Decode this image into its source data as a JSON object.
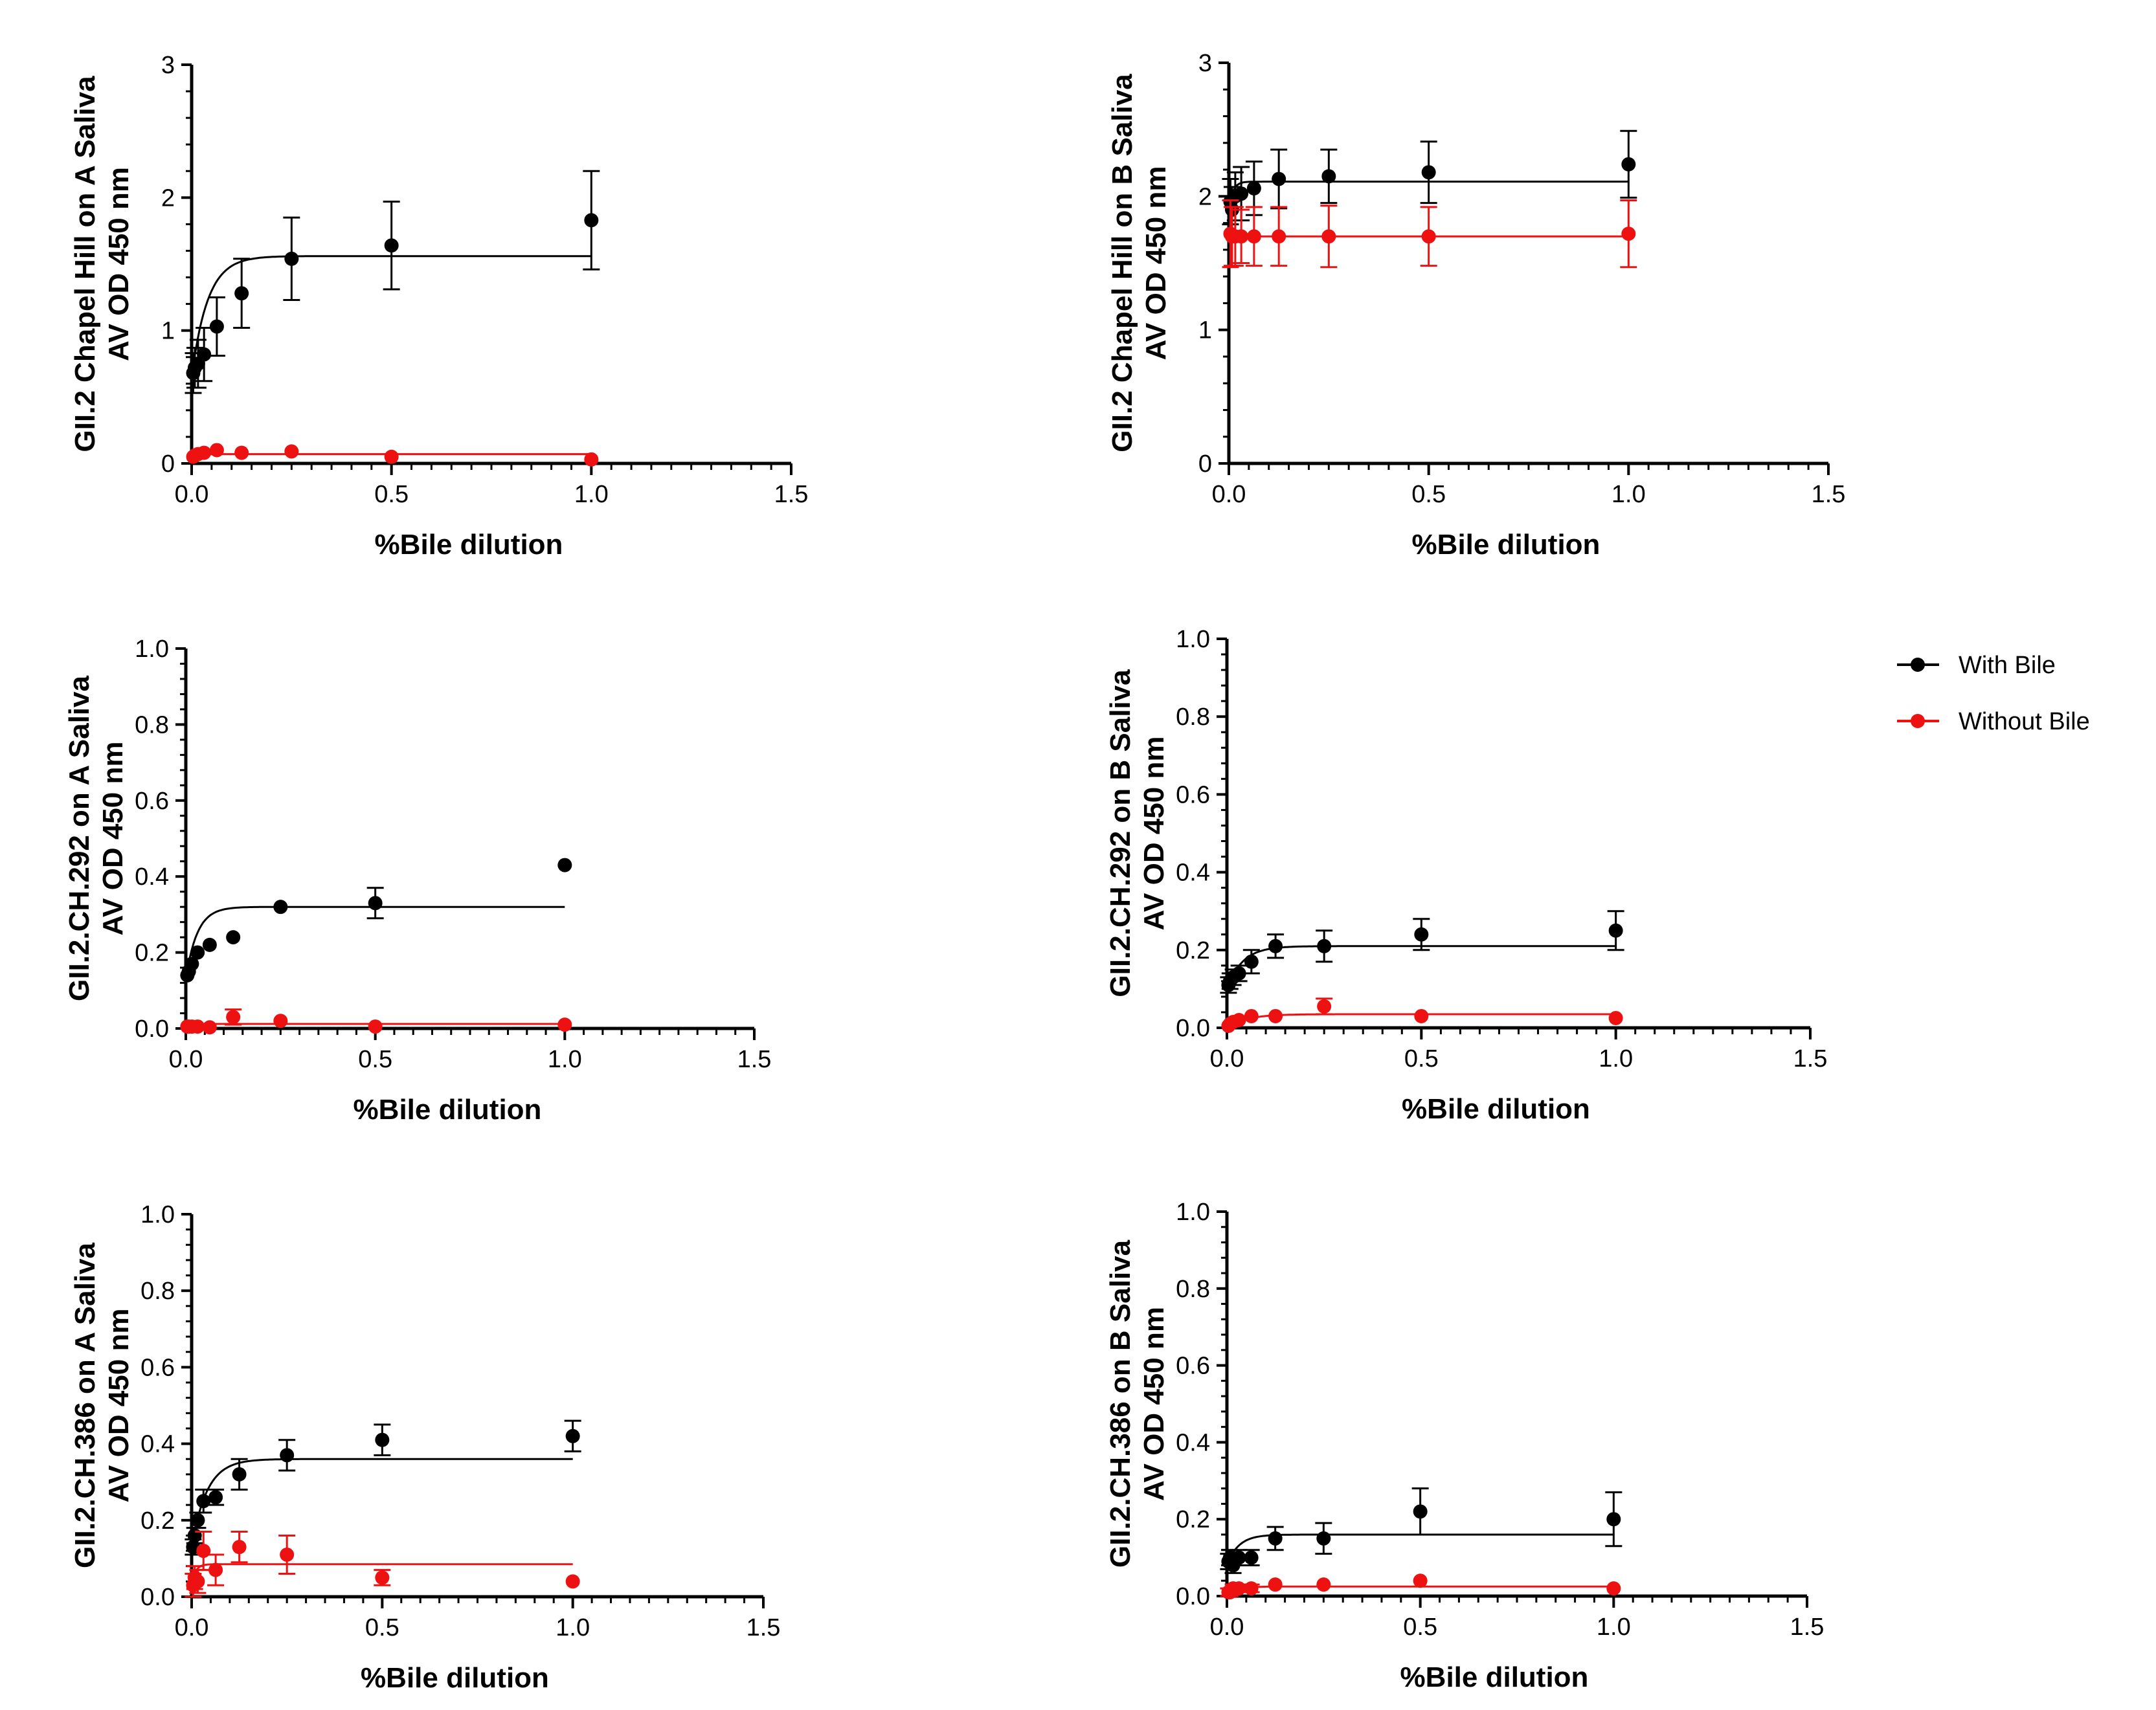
{
  "colors": {
    "with_bile": "#000000",
    "without_bile": "#ee1111",
    "axis": "#000000"
  },
  "legend": {
    "items": [
      {
        "label": "With Bile",
        "series": "with_bile"
      },
      {
        "label": "Without Bile",
        "series": "without_bile"
      }
    ]
  },
  "chart_data": [
    {
      "type": "scatter",
      "xlabel": "%Bile dilution",
      "ylabel": [
        "GII.2 Chapel Hill on A Saliva",
        "AV OD 450 nm"
      ],
      "xlim": [
        0,
        1.5
      ],
      "ylim": [
        0,
        3
      ],
      "xticks": [
        "0.0",
        "0.5",
        "1.0",
        "1.5"
      ],
      "yticks": [
        "0",
        "1",
        "2",
        "3"
      ],
      "series": [
        {
          "name": "With Bile",
          "key": "with_bile",
          "x": [
            0.004,
            0.008,
            0.016,
            0.031,
            0.063,
            0.125,
            0.25,
            0.5,
            1.0
          ],
          "y": [
            0.68,
            0.72,
            0.75,
            0.82,
            1.03,
            1.28,
            1.54,
            1.64,
            1.83
          ],
          "err": [
            0.15,
            0.15,
            0.18,
            0.2,
            0.22,
            0.26,
            0.31,
            0.33,
            0.37
          ],
          "fit": {
            "plateau": 1.56,
            "y0": 0.65,
            "k": 0.04
          }
        },
        {
          "name": "Without Bile",
          "key": "without_bile",
          "x": [
            0.004,
            0.008,
            0.016,
            0.031,
            0.063,
            0.125,
            0.25,
            0.5,
            1.0
          ],
          "y": [
            0.05,
            0.06,
            0.07,
            0.08,
            0.1,
            0.08,
            0.09,
            0.05,
            0.03
          ],
          "err": [
            0,
            0,
            0,
            0,
            0,
            0,
            0,
            0,
            0
          ],
          "fit": {
            "plateau": 0.07,
            "y0": 0.05,
            "k": 0.01
          }
        }
      ]
    },
    {
      "type": "scatter",
      "xlabel": "%Bile dilution",
      "ylabel": [
        "GII.2 Chapel Hill on B Saliva",
        "AV OD 450 nm"
      ],
      "xlim": [
        0,
        1.5
      ],
      "ylim": [
        0,
        3
      ],
      "xticks": [
        "0.0",
        "0.5",
        "1.0",
        "1.5"
      ],
      "yticks": [
        "0",
        "1",
        "2",
        "3"
      ],
      "series": [
        {
          "name": "With Bile",
          "key": "with_bile",
          "x": [
            0.004,
            0.008,
            0.016,
            0.031,
            0.063,
            0.125,
            0.25,
            0.5,
            1.0
          ],
          "y": [
            1.96,
            1.9,
            2.0,
            2.02,
            2.06,
            2.13,
            2.15,
            2.18,
            2.24
          ],
          "err": [
            0.17,
            0.17,
            0.18,
            0.2,
            0.2,
            0.22,
            0.2,
            0.23,
            0.25
          ],
          "fit": {
            "plateau": 2.11,
            "y0": 1.9,
            "k": 0.01
          }
        },
        {
          "name": "Without Bile",
          "key": "without_bile",
          "x": [
            0.004,
            0.008,
            0.016,
            0.031,
            0.063,
            0.125,
            0.25,
            0.5,
            1.0
          ],
          "y": [
            1.72,
            1.7,
            1.7,
            1.7,
            1.7,
            1.7,
            1.7,
            1.7,
            1.72
          ],
          "err": [
            0.25,
            0.22,
            0.22,
            0.2,
            0.22,
            0.22,
            0.23,
            0.22,
            0.25
          ],
          "fit": {
            "plateau": 1.7,
            "y0": 1.7,
            "k": 0.01
          }
        }
      ]
    },
    {
      "type": "scatter",
      "xlabel": "%Bile dilution",
      "ylabel": [
        "GII.2.CH.292  on A Saliva",
        "AV OD 450 nm"
      ],
      "xlim": [
        0,
        1.5
      ],
      "ylim": [
        0,
        1.0
      ],
      "xticks": [
        "0.0",
        "0.5",
        "1.0",
        "1.5"
      ],
      "yticks": [
        "0.0",
        "0.2",
        "0.4",
        "0.6",
        "0.8",
        "1.0"
      ],
      "series": [
        {
          "name": "With Bile",
          "key": "with_bile",
          "x": [
            0.004,
            0.008,
            0.016,
            0.031,
            0.063,
            0.125,
            0.25,
            0.5,
            1.0
          ],
          "y": [
            0.14,
            0.15,
            0.17,
            0.2,
            0.22,
            0.24,
            0.32,
            0.33,
            0.43
          ],
          "err": [
            0,
            0,
            0,
            0,
            0,
            0,
            0,
            0.04,
            0
          ],
          "fit": {
            "plateau": 0.32,
            "y0": 0.13,
            "k": 0.03
          }
        },
        {
          "name": "Without Bile",
          "key": "without_bile",
          "x": [
            0.004,
            0.008,
            0.016,
            0.031,
            0.063,
            0.125,
            0.25,
            0.5,
            1.0
          ],
          "y": [
            0.005,
            0.005,
            0.005,
            0.005,
            0.003,
            0.03,
            0.02,
            0.005,
            0.01
          ],
          "err": [
            0,
            0,
            0,
            0,
            0,
            0.02,
            0,
            0,
            0
          ],
          "fit": {
            "plateau": 0.012,
            "y0": 0.005,
            "k": 0.02
          }
        }
      ]
    },
    {
      "type": "scatter",
      "xlabel": "%Bile dilution",
      "ylabel": [
        "GII.2.CH.292 on B Saliva",
        "AV OD 450 nm"
      ],
      "xlim": [
        0,
        1.5
      ],
      "ylim": [
        0,
        1.0
      ],
      "xticks": [
        "0.0",
        "0.5",
        "1.0",
        "1.5"
      ],
      "yticks": [
        "0.0",
        "0.2",
        "0.4",
        "0.6",
        "0.8",
        "1.0"
      ],
      "series": [
        {
          "name": "With Bile",
          "key": "with_bile",
          "x": [
            0.004,
            0.008,
            0.016,
            0.031,
            0.063,
            0.125,
            0.25,
            0.5,
            1.0
          ],
          "y": [
            0.11,
            0.12,
            0.13,
            0.14,
            0.17,
            0.21,
            0.21,
            0.24,
            0.25
          ],
          "err": [
            0.02,
            0.02,
            0.02,
            0.02,
            0.03,
            0.03,
            0.04,
            0.04,
            0.05
          ],
          "fit": {
            "plateau": 0.21,
            "y0": 0.1,
            "k": 0.04
          }
        },
        {
          "name": "Without Bile",
          "key": "without_bile",
          "x": [
            0.004,
            0.008,
            0.016,
            0.031,
            0.063,
            0.125,
            0.25,
            0.5,
            1.0
          ],
          "y": [
            0.005,
            0.01,
            0.015,
            0.02,
            0.03,
            0.03,
            0.055,
            0.03,
            0.025
          ],
          "err": [
            0,
            0,
            0,
            0,
            0,
            0,
            0.02,
            0,
            0
          ],
          "fit": {
            "plateau": 0.035,
            "y0": 0.0,
            "k": 0.05
          }
        }
      ]
    },
    {
      "type": "scatter",
      "xlabel": "%Bile dilution",
      "ylabel": [
        "GII.2.CH.386 on A Saliva",
        "AV OD 450 nm"
      ],
      "xlim": [
        0,
        1.5
      ],
      "ylim": [
        0,
        1.0
      ],
      "xticks": [
        "0.0",
        "0.5",
        "1.0",
        "1.5"
      ],
      "yticks": [
        "0.0",
        "0.2",
        "0.4",
        "0.6",
        "0.8",
        "1.0"
      ],
      "series": [
        {
          "name": "With Bile",
          "key": "with_bile",
          "x": [
            0.004,
            0.008,
            0.016,
            0.031,
            0.063,
            0.125,
            0.25,
            0.5,
            1.0
          ],
          "y": [
            0.13,
            0.16,
            0.2,
            0.25,
            0.26,
            0.32,
            0.37,
            0.41,
            0.42
          ],
          "err": [
            0.02,
            0.02,
            0.02,
            0.03,
            0.02,
            0.04,
            0.04,
            0.04,
            0.04
          ],
          "fit": {
            "plateau": 0.36,
            "y0": 0.13,
            "k": 0.04
          }
        },
        {
          "name": "Without Bile",
          "key": "without_bile",
          "x": [
            0.004,
            0.008,
            0.016,
            0.031,
            0.063,
            0.125,
            0.25,
            0.5,
            1.0
          ],
          "y": [
            0.03,
            0.05,
            0.04,
            0.12,
            0.07,
            0.13,
            0.11,
            0.05,
            0.04
          ],
          "err": [
            0.03,
            0.03,
            0.03,
            0.05,
            0.04,
            0.04,
            0.05,
            0.02,
            0
          ],
          "fit": {
            "plateau": 0.085,
            "y0": 0.03,
            "k": 0.01
          }
        }
      ]
    },
    {
      "type": "scatter",
      "xlabel": "%Bile dilution",
      "ylabel": [
        "GII.2.CH.386 on B Saliva",
        "AV OD 450 nm"
      ],
      "xlim": [
        0,
        1.5
      ],
      "ylim": [
        0,
        1.0
      ],
      "xticks": [
        "0.0",
        "0.5",
        "1.0",
        "1.5"
      ],
      "yticks": [
        "0.0",
        "0.2",
        "0.4",
        "0.6",
        "0.8",
        "1.0"
      ],
      "series": [
        {
          "name": "With Bile",
          "key": "with_bile",
          "x": [
            0.004,
            0.008,
            0.016,
            0.031,
            0.063,
            0.125,
            0.25,
            0.5,
            1.0
          ],
          "y": [
            0.09,
            0.1,
            0.08,
            0.1,
            0.1,
            0.15,
            0.15,
            0.22,
            0.2
          ],
          "err": [
            0.02,
            0.02,
            0.02,
            0.02,
            0.02,
            0.03,
            0.04,
            0.06,
            0.07
          ],
          "fit": {
            "plateau": 0.16,
            "y0": 0.08,
            "k": 0.03
          }
        },
        {
          "name": "Without Bile",
          "key": "without_bile",
          "x": [
            0.004,
            0.008,
            0.016,
            0.031,
            0.063,
            0.125,
            0.25,
            0.5,
            1.0
          ],
          "y": [
            0.01,
            0.01,
            0.02,
            0.02,
            0.02,
            0.03,
            0.03,
            0.04,
            0.02
          ],
          "err": [
            0.01,
            0.01,
            0.01,
            0.01,
            0.01,
            0,
            0,
            0,
            0
          ],
          "fit": {
            "plateau": 0.025,
            "y0": 0.01,
            "k": 0.03
          }
        }
      ]
    }
  ]
}
